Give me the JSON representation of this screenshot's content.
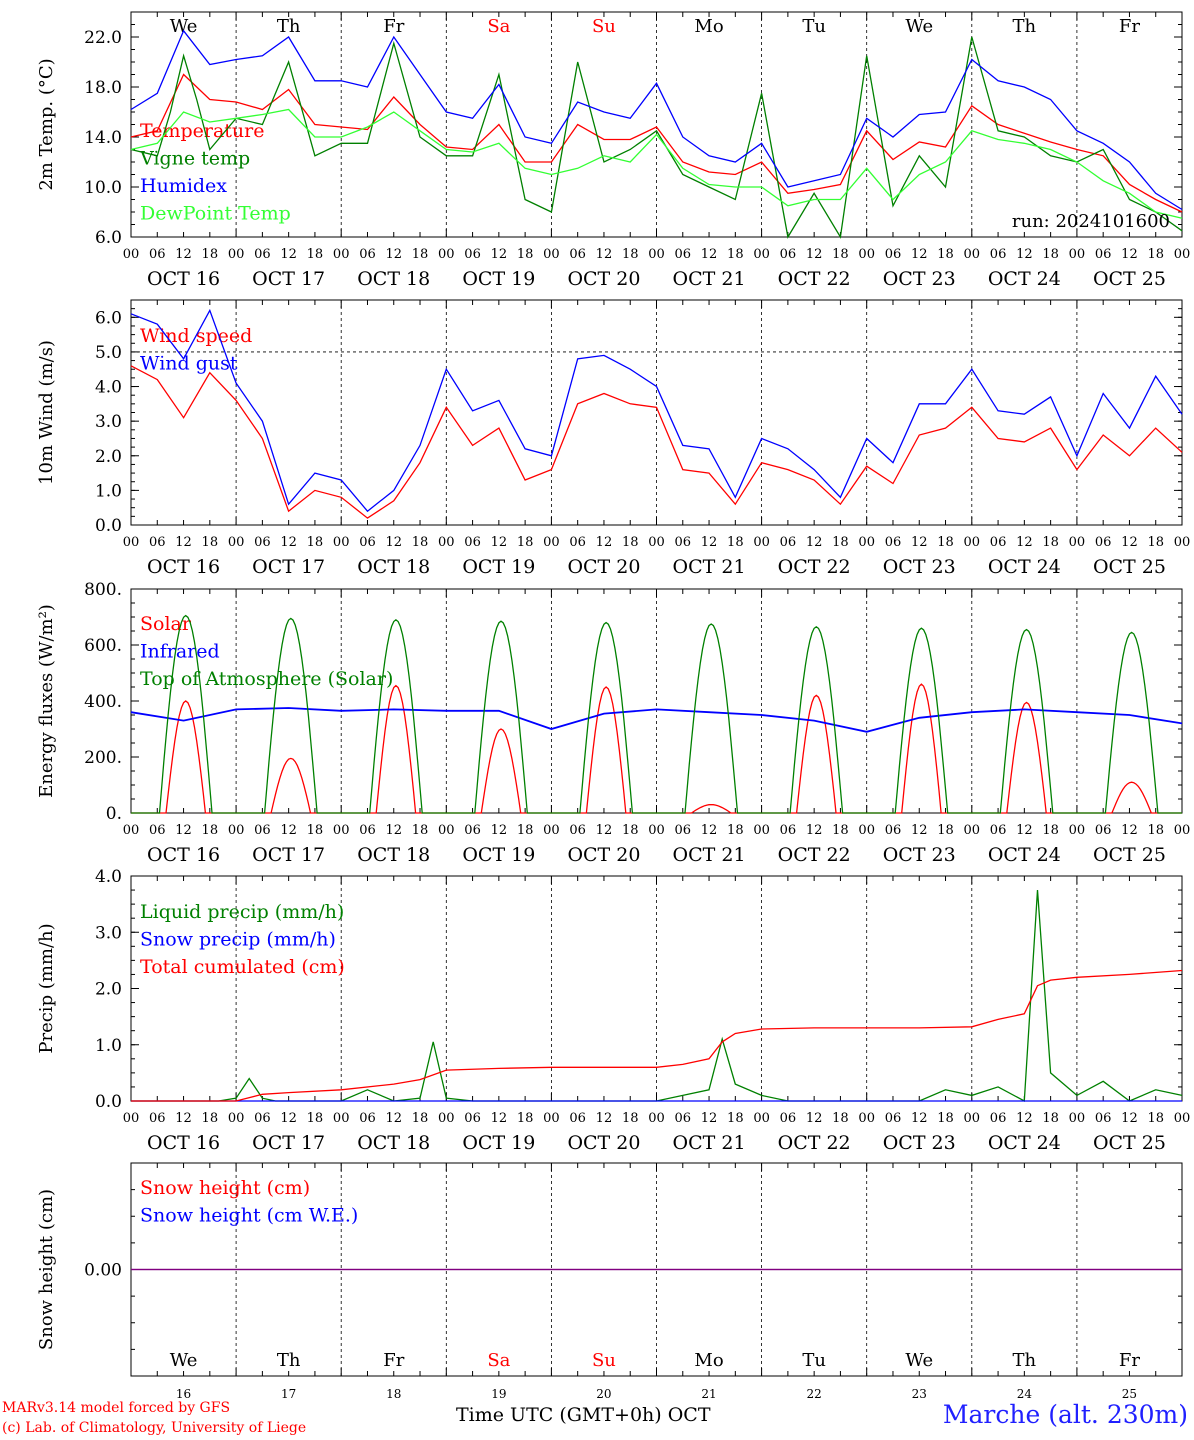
{
  "run_label": "run: 2024101600",
  "days": [
    "We",
    "Th",
    "Fr",
    "Sa",
    "Su",
    "Mo",
    "Tu",
    "We",
    "Th",
    "Fr"
  ],
  "weekend_days": [
    3,
    4
  ],
  "dates": [
    "OCT 16",
    "OCT 17",
    "OCT 18",
    "OCT 19",
    "OCT 20",
    "OCT 21",
    "OCT 22",
    "OCT 23",
    "OCT 24",
    "OCT 25"
  ],
  "day_numbers": [
    "16",
    "17",
    "18",
    "19",
    "20",
    "21",
    "22",
    "23",
    "24",
    "25"
  ],
  "hour_ticks": [
    "00",
    "06",
    "12",
    "18"
  ],
  "last_tick": "00",
  "footer": {
    "model_line": "MARv3.14 model forced by GFS",
    "credit_line": "(c) Lab. of Climatology, University of Liege",
    "xlabel": "Time UTC (GMT+0h) OCT",
    "station": "Marche (alt. 230m)"
  },
  "colors": {
    "red": "#ff0000",
    "green": "#008000",
    "blue": "#0000ff",
    "lightgreen": "#33ff33",
    "purple": "#800080"
  },
  "chart_data": [
    {
      "type": "line",
      "ylabel": "2m Temp. (°C)",
      "ylim": [
        6,
        24
      ],
      "yticks": [
        "6.0",
        "10.0",
        "14.0",
        "18.0",
        "22.0"
      ],
      "ytick_values": [
        6,
        10,
        14,
        18,
        22
      ],
      "x_unit": "hours since OCT 16 00 UTC",
      "series": [
        {
          "name": "Temperature",
          "color": "#ff0000",
          "x": [
            0,
            6,
            12,
            18,
            24,
            30,
            36,
            42,
            48,
            54,
            60,
            66,
            72,
            78,
            84,
            90,
            96,
            102,
            108,
            114,
            120,
            126,
            132,
            138,
            144,
            150,
            156,
            162,
            168,
            174,
            180,
            186,
            192,
            198,
            204,
            210,
            216,
            222,
            228,
            234,
            240
          ],
          "y": [
            14,
            14.5,
            19,
            17,
            16.8,
            16.2,
            17.8,
            15,
            14.8,
            14.6,
            17.2,
            15,
            13.2,
            13,
            15,
            12,
            12,
            15,
            13.8,
            13.8,
            14.8,
            12,
            11.2,
            11,
            12,
            9.5,
            9.8,
            10.2,
            14.5,
            12.2,
            13.6,
            13.2,
            16.5,
            15,
            14.3,
            13.6,
            13,
            12.5,
            10.2,
            9,
            8
          ]
        },
        {
          "name": "Vigne temp",
          "color": "#008000",
          "x": [
            0,
            6,
            9,
            12,
            15,
            18,
            24,
            30,
            36,
            42,
            48,
            54,
            60,
            66,
            72,
            78,
            84,
            90,
            96,
            102,
            108,
            114,
            120,
            126,
            132,
            138,
            144,
            150,
            156,
            162,
            168,
            174,
            180,
            186,
            192,
            198,
            204,
            210,
            216,
            222,
            228,
            234,
            240
          ],
          "y": [
            13,
            12.5,
            16,
            20.5,
            17,
            13,
            15.5,
            15,
            20,
            12.5,
            13.5,
            13.5,
            21.5,
            14,
            12.5,
            12.5,
            19,
            9,
            8,
            20,
            12,
            13,
            14.5,
            11,
            10,
            9,
            17.5,
            6,
            9.5,
            6,
            20.5,
            8.5,
            12.5,
            10,
            22,
            14.5,
            14,
            12.5,
            12,
            13,
            9,
            8,
            6.5
          ]
        },
        {
          "name": "Humidex",
          "color": "#0000ff",
          "x": [
            0,
            6,
            12,
            18,
            24,
            30,
            36,
            42,
            48,
            54,
            60,
            66,
            72,
            78,
            84,
            90,
            96,
            102,
            108,
            114,
            120,
            126,
            132,
            138,
            144,
            150,
            156,
            162,
            168,
            174,
            180,
            186,
            192,
            198,
            204,
            210,
            216,
            222,
            228,
            234,
            240
          ],
          "y": [
            16.2,
            17.5,
            22.5,
            19.8,
            20.2,
            20.5,
            22,
            18.5,
            18.5,
            18,
            22,
            19,
            16,
            15.5,
            18.2,
            14,
            13.5,
            16.8,
            16,
            15.5,
            18.3,
            14,
            12.5,
            12,
            13.5,
            10,
            10.5,
            11,
            15.5,
            14,
            15.8,
            16,
            20.2,
            18.5,
            18,
            17,
            14.5,
            13.5,
            12,
            9.5,
            8.2
          ]
        },
        {
          "name": "DewPoint Temp",
          "color": "#33ff33",
          "x": [
            0,
            6,
            12,
            18,
            24,
            30,
            36,
            42,
            48,
            54,
            60,
            66,
            72,
            78,
            84,
            90,
            96,
            102,
            108,
            114,
            120,
            126,
            132,
            138,
            144,
            150,
            156,
            162,
            168,
            174,
            180,
            186,
            192,
            198,
            204,
            210,
            216,
            222,
            228,
            234,
            240
          ],
          "y": [
            13,
            13.5,
            16,
            15.2,
            15.5,
            15.8,
            16.2,
            14,
            14,
            14.8,
            16,
            14.5,
            13,
            12.8,
            13.5,
            11.5,
            11,
            11.5,
            12.5,
            12,
            14.2,
            11.5,
            10.2,
            10,
            10,
            8.5,
            9,
            9,
            11.5,
            9,
            11,
            12,
            14.5,
            13.8,
            13.5,
            13,
            12,
            10.5,
            9.5,
            8,
            7.5
          ]
        }
      ]
    },
    {
      "type": "line",
      "ylabel": "10m Wind (m/s)",
      "ylim": [
        0,
        6.5
      ],
      "yticks": [
        "0.0",
        "1.0",
        "2.0",
        "3.0",
        "4.0",
        "5.0",
        "6.0"
      ],
      "ytick_values": [
        0,
        1,
        2,
        3,
        4,
        5,
        6
      ],
      "threshold_value": 5.0,
      "series": [
        {
          "name": "Wind speed",
          "color": "#ff0000",
          "x": [
            0,
            6,
            12,
            18,
            24,
            30,
            36,
            42,
            48,
            54,
            60,
            66,
            72,
            78,
            84,
            90,
            96,
            102,
            108,
            114,
            120,
            126,
            132,
            138,
            144,
            150,
            156,
            162,
            168,
            174,
            180,
            186,
            192,
            198,
            204,
            210,
            216,
            222,
            228,
            234,
            240
          ],
          "y": [
            4.6,
            4.2,
            3.1,
            4.4,
            3.6,
            2.5,
            0.4,
            1,
            0.8,
            0.2,
            0.7,
            1.8,
            3.4,
            2.3,
            2.8,
            1.3,
            1.6,
            3.5,
            3.8,
            3.5,
            3.4,
            1.6,
            1.5,
            0.6,
            1.8,
            1.6,
            1.3,
            0.6,
            1.7,
            1.2,
            2.6,
            2.8,
            3.4,
            2.5,
            2.4,
            2.8,
            1.6,
            2.6,
            2.0,
            2.8,
            2.1
          ]
        },
        {
          "name": "Wind gust",
          "color": "#0000ff",
          "x": [
            0,
            6,
            12,
            18,
            24,
            30,
            36,
            42,
            48,
            54,
            60,
            66,
            72,
            78,
            84,
            90,
            96,
            102,
            108,
            114,
            120,
            126,
            132,
            138,
            144,
            150,
            156,
            162,
            168,
            174,
            180,
            186,
            192,
            198,
            204,
            210,
            216,
            222,
            228,
            234,
            240
          ],
          "y": [
            6.1,
            5.8,
            4.8,
            6.2,
            4.1,
            3.0,
            0.6,
            1.5,
            1.3,
            0.4,
            1.0,
            2.3,
            4.5,
            3.3,
            3.6,
            2.2,
            2.0,
            4.8,
            4.9,
            4.5,
            4.0,
            2.3,
            2.2,
            0.8,
            2.5,
            2.2,
            1.6,
            0.8,
            2.5,
            1.8,
            3.5,
            3.5,
            4.5,
            3.3,
            3.2,
            3.7,
            2.0,
            3.8,
            2.8,
            4.3,
            3.2
          ]
        }
      ]
    },
    {
      "type": "line",
      "ylabel": "Energy fluxes (W/m²)",
      "ylim": [
        0,
        800
      ],
      "yticks": [
        "0.",
        "200.",
        "400.",
        "600.",
        "800."
      ],
      "ytick_values": [
        0,
        200,
        400,
        600,
        800
      ],
      "series": [
        {
          "name": "Solar",
          "color": "#ff0000",
          "day_peaks": [
            400,
            195,
            455,
            300,
            450,
            30,
            420,
            460,
            395,
            110
          ]
        },
        {
          "name": "Infrared",
          "color": "#0000ff",
          "x": [
            0,
            12,
            24,
            36,
            48,
            60,
            72,
            84,
            96,
            108,
            120,
            132,
            144,
            156,
            168,
            180,
            192,
            204,
            216,
            228,
            240
          ],
          "y": [
            360,
            330,
            370,
            375,
            365,
            370,
            365,
            365,
            300,
            355,
            370,
            360,
            350,
            330,
            290,
            340,
            360,
            370,
            360,
            350,
            320
          ]
        },
        {
          "name": "Top of Atmosphere (Solar)",
          "color": "#008000",
          "day_peaks": [
            705,
            695,
            690,
            685,
            680,
            675,
            665,
            660,
            655,
            645
          ]
        }
      ]
    },
    {
      "type": "line",
      "ylabel": "Precip (mm/h)",
      "ylim": [
        0,
        4
      ],
      "yticks": [
        "0.0",
        "1.0",
        "2.0",
        "3.0",
        "4.0"
      ],
      "ytick_values": [
        0,
        1,
        2,
        3,
        4
      ],
      "series": [
        {
          "name": "Liquid precip (mm/h)",
          "color": "#008000",
          "x": [
            0,
            20,
            24,
            27,
            30,
            33,
            36,
            48,
            54,
            60,
            66,
            69,
            72,
            78,
            84,
            96,
            120,
            126,
            132,
            135,
            138,
            144,
            150,
            180,
            186,
            192,
            198,
            204,
            207,
            210,
            216,
            222,
            228,
            234,
            240
          ],
          "y": [
            0,
            0,
            0.05,
            0.4,
            0.05,
            0,
            0,
            0,
            0.2,
            0,
            0.05,
            1.05,
            0.05,
            0,
            0,
            0,
            0,
            0.1,
            0.2,
            1.1,
            0.3,
            0.1,
            0,
            0,
            0.2,
            0.1,
            0.25,
            0,
            3.75,
            0.5,
            0.1,
            0.35,
            0,
            0.2,
            0.1
          ]
        },
        {
          "name": "Snow precip (mm/h)",
          "color": "#0000ff",
          "x": [
            0,
            240
          ],
          "y": [
            0,
            0
          ]
        },
        {
          "name": "Total cumulated (cm)",
          "color": "#ff0000",
          "x": [
            0,
            24,
            30,
            36,
            48,
            60,
            66,
            72,
            84,
            96,
            108,
            120,
            126,
            132,
            135,
            138,
            144,
            156,
            168,
            180,
            192,
            198,
            204,
            207,
            210,
            216,
            228,
            240
          ],
          "y": [
            0,
            0,
            0.12,
            0.15,
            0.2,
            0.3,
            0.38,
            0.55,
            0.58,
            0.6,
            0.6,
            0.6,
            0.65,
            0.75,
            1.05,
            1.2,
            1.28,
            1.3,
            1.3,
            1.3,
            1.32,
            1.45,
            1.55,
            2.05,
            2.15,
            2.2,
            2.25,
            2.32
          ]
        }
      ]
    },
    {
      "type": "line",
      "ylabel": "Snow height (cm)",
      "ylim": [
        -1,
        1
      ],
      "yticks": [
        "0.00"
      ],
      "ytick_values": [
        0
      ],
      "series": [
        {
          "name": "Snow height (cm)",
          "color": "#ff0000",
          "x": [
            0,
            240
          ],
          "y": [
            0,
            0
          ]
        },
        {
          "name": "Snow height (cm W.E.)",
          "color": "#0000ff",
          "x": [
            0,
            240
          ],
          "y": [
            0,
            0
          ]
        }
      ]
    }
  ]
}
